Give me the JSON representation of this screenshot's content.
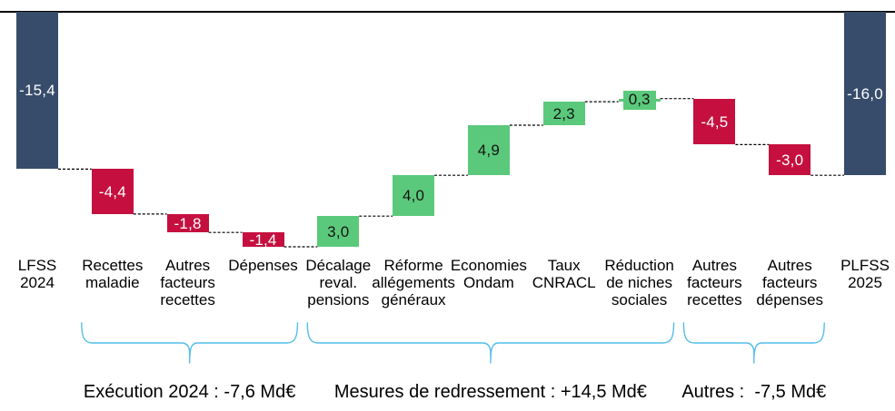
{
  "chart_data": {
    "type": "waterfall",
    "unit": "Md€",
    "bars": [
      {
        "label_lines": [
          "LFSS",
          "2024"
        ],
        "value": -15.4,
        "display": "-15,4",
        "kind": "total",
        "color": "navy"
      },
      {
        "label_lines": [
          "Recettes",
          "maladie"
        ],
        "value": -4.4,
        "display": "-4,4",
        "kind": "delta",
        "color": "red"
      },
      {
        "label_lines": [
          "Autres",
          "facteurs",
          "recettes"
        ],
        "value": -1.8,
        "display": "-1,8",
        "kind": "delta",
        "color": "red"
      },
      {
        "label_lines": [
          "Dépenses"
        ],
        "value": -1.4,
        "display": "-1,4",
        "kind": "delta",
        "color": "red"
      },
      {
        "label_lines": [
          "Décalage",
          "reval.",
          "pensions"
        ],
        "value": 3.0,
        "display": "3,0",
        "kind": "delta",
        "color": "green"
      },
      {
        "label_lines": [
          "Réforme",
          "allégements",
          "généraux"
        ],
        "value": 4.0,
        "display": "4,0",
        "kind": "delta",
        "color": "green"
      },
      {
        "label_lines": [
          "Economies",
          "Ondam"
        ],
        "value": 4.9,
        "display": "4,9",
        "kind": "delta",
        "color": "green"
      },
      {
        "label_lines": [
          "Taux",
          "CNRACL"
        ],
        "value": 2.3,
        "display": "2,3",
        "kind": "delta",
        "color": "green"
      },
      {
        "label_lines": [
          "Réduction",
          "de niches",
          "sociales"
        ],
        "value": 0.3,
        "display": "0,3",
        "kind": "delta",
        "color": "green",
        "tiny": true
      },
      {
        "label_lines": [
          "Autres",
          "facteurs",
          "recettes"
        ],
        "value": -4.5,
        "display": "-4,5",
        "kind": "delta",
        "color": "red"
      },
      {
        "label_lines": [
          "Autres",
          "facteurs",
          "dépenses"
        ],
        "value": -3.0,
        "display": "-3,0",
        "kind": "delta",
        "color": "red"
      },
      {
        "label_lines": [
          "PLFSS",
          "2025"
        ],
        "value": -16.0,
        "display": "-16,0",
        "kind": "total",
        "color": "navy"
      }
    ],
    "groups": [
      {
        "label": "Exécution 2024 : -7,6 Md€",
        "from": 1,
        "to": 3
      },
      {
        "label": "Mesures de redressement : +14,5 Md€",
        "from": 4,
        "to": 8
      },
      {
        "label": "Autres :  -7,5 Md€",
        "from": 9,
        "to": 10
      }
    ],
    "ylim": [
      -23,
      0
    ],
    "grid": false,
    "legend": "none"
  },
  "colors": {
    "navy": "#374C6A",
    "red": "#C5103F",
    "green": "#5BC97B",
    "brace": "#54BEEB",
    "connector": "#000000",
    "axis_line": "#000000",
    "text": "#000000"
  }
}
